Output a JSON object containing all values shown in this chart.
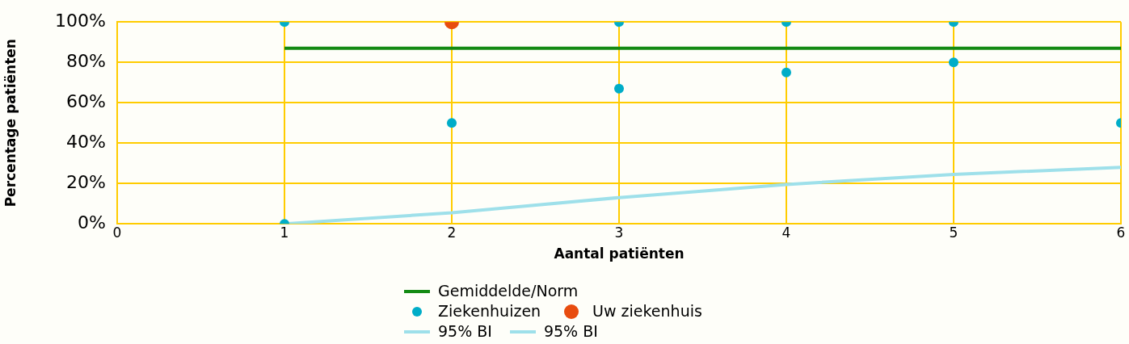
{
  "chart_data": {
    "type": "scatter",
    "xlabel": "Aantal patiënten",
    "ylabel": "Percentage patiënten",
    "xlim": [
      0,
      6
    ],
    "xticks": [
      0,
      1,
      2,
      3,
      4,
      5,
      6
    ],
    "ylim": [
      0,
      100
    ],
    "yticks": [
      {
        "value": 0,
        "label": "0%"
      },
      {
        "value": 20,
        "label": "20%"
      },
      {
        "value": 40,
        "label": "40%"
      },
      {
        "value": 60,
        "label": "60%"
      },
      {
        "value": 80,
        "label": "80%"
      },
      {
        "value": 100,
        "label": "100%"
      }
    ],
    "grid": true,
    "legend": "bottom",
    "series": [
      {
        "name": "Gemiddelde/Norm",
        "type": "line",
        "color": "#138a13",
        "x": [
          1,
          6
        ],
        "values": [
          87,
          87
        ]
      },
      {
        "name": "Ziekenhuizen",
        "color": "#00adc8",
        "x": [
          1,
          1,
          2,
          3,
          3,
          4,
          4,
          5,
          5,
          6
        ],
        "values": [
          100,
          0,
          50,
          100,
          67,
          100,
          75,
          100,
          80,
          50
        ]
      },
      {
        "name": "Uw ziekenhuis",
        "color": "#e84c0f",
        "x": [
          2
        ],
        "values": [
          100
        ]
      },
      {
        "name": "95% BI",
        "type": "line",
        "color": "#9ee0ea",
        "x": [
          1,
          2,
          3,
          4,
          5,
          6
        ],
        "values": [
          0,
          5.5,
          13,
          19.5,
          24.5,
          28
        ]
      },
      {
        "name": "95% BI",
        "type": "line",
        "color": "#9ee0ea"
      }
    ]
  }
}
